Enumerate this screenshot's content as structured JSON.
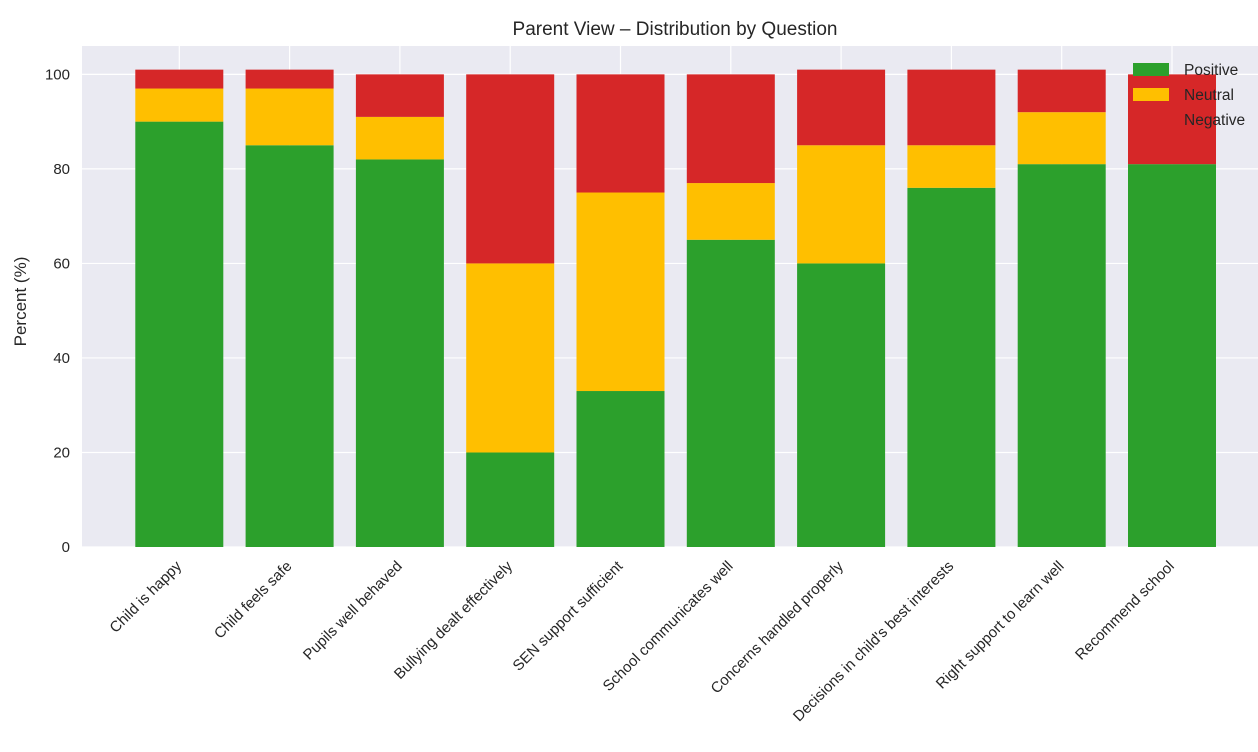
{
  "chart_data": {
    "type": "bar",
    "stacked": true,
    "title": "Parent View – Distribution by Question",
    "xlabel": "",
    "ylabel": "Percent (%)",
    "ylim": [
      0,
      106
    ],
    "yticks": [
      0,
      20,
      40,
      60,
      80,
      100
    ],
    "grid": true,
    "legend_position": "top-right",
    "categories": [
      "Child is happy",
      "Child feels safe",
      "Pupils well behaved",
      "Bullying dealt effectively",
      "SEN support sufficient",
      "School communicates well",
      "Concerns handled properly",
      "Decisions in child's best interests",
      "Right support to learn well",
      "Recommend school"
    ],
    "series": [
      {
        "name": "Positive",
        "color": "#2ca02c",
        "values": [
          90,
          85,
          82,
          20,
          33,
          65,
          60,
          76,
          81,
          81
        ]
      },
      {
        "name": "Neutral",
        "color": "#ffbf00",
        "values": [
          7,
          12,
          9,
          40,
          42,
          12,
          25,
          9,
          11,
          0
        ]
      },
      {
        "name": "Negative",
        "color": "#d62728",
        "values": [
          4,
          4,
          9,
          40,
          25,
          23,
          16,
          16,
          9,
          19
        ]
      }
    ],
    "colors": {
      "plot_background": "#eaeaf2",
      "grid": "#ffffff",
      "text": "#262626"
    }
  }
}
